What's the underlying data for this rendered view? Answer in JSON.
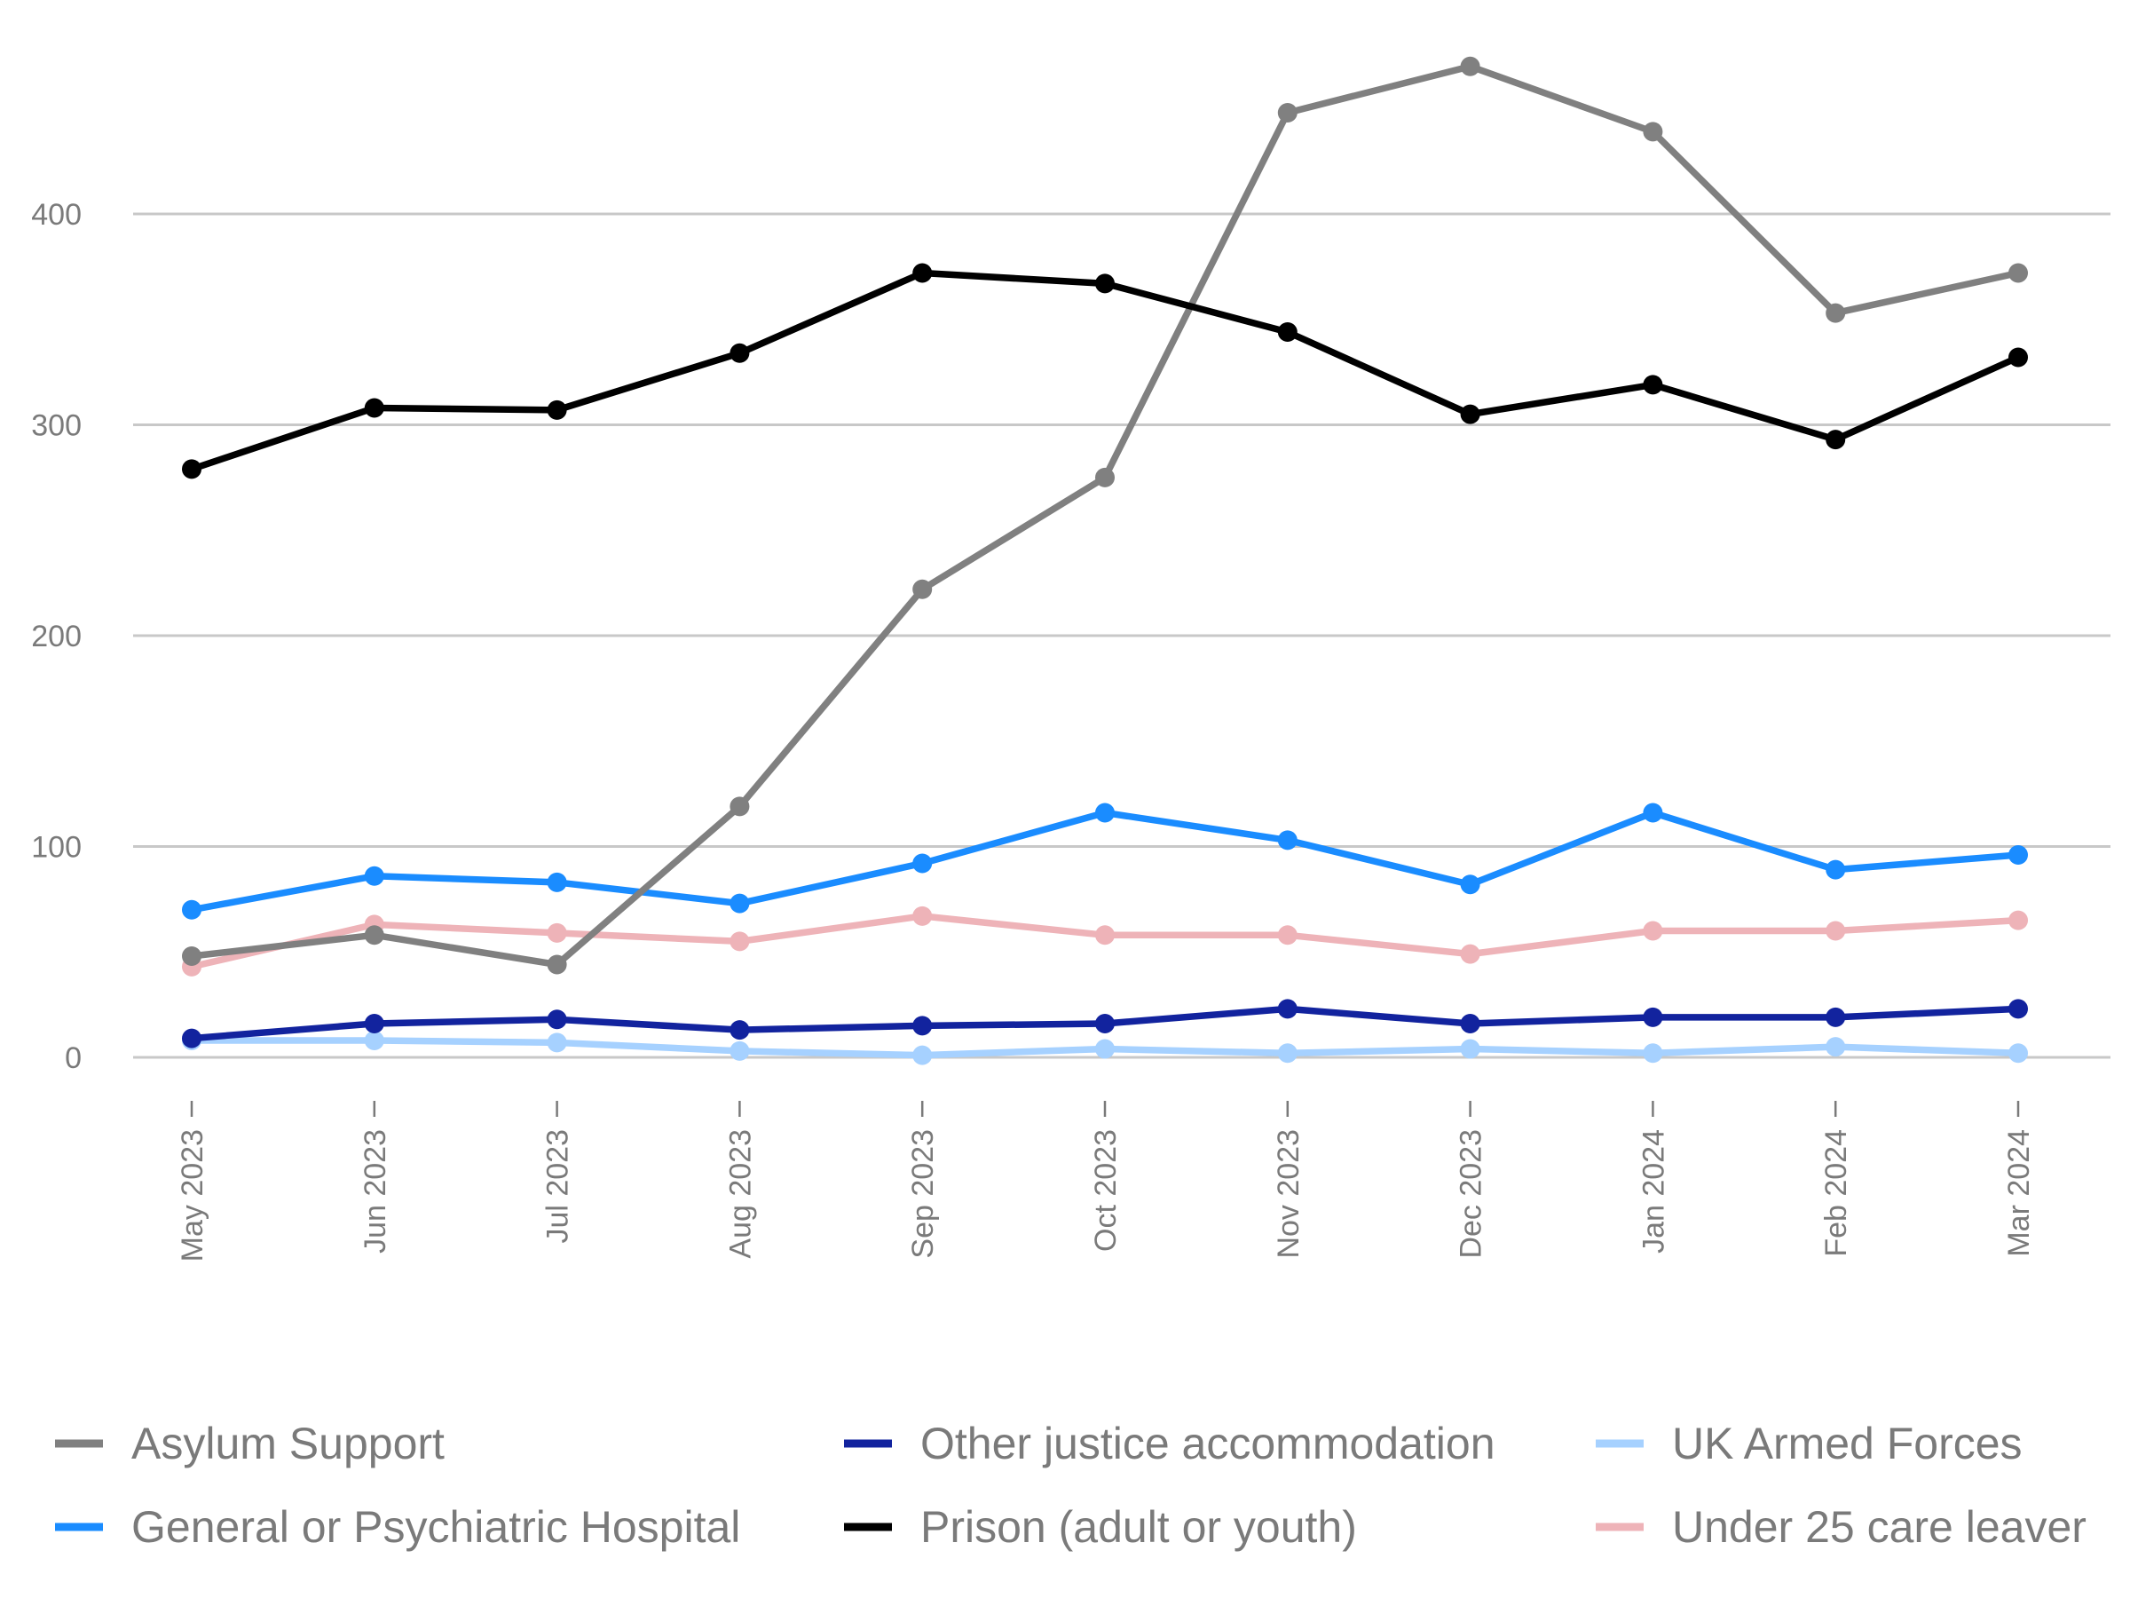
{
  "chart_data": {
    "type": "line",
    "categories": [
      "May 2023",
      "Jun 2023",
      "Jul 2023",
      "Aug 2023",
      "Sep 2023",
      "Oct 2023",
      "Nov 2023",
      "Dec 2023",
      "Jan 2024",
      "Feb 2024",
      "Mar 2024"
    ],
    "ylim": [
      -20,
      470
    ],
    "yticks": [
      0,
      100,
      200,
      300,
      400
    ],
    "grid": true,
    "legend_position": "bottom",
    "series": [
      {
        "name": "Asylum Support",
        "color": "#808080",
        "values": [
          48,
          58,
          44,
          119,
          222,
          275,
          448,
          470,
          439,
          353,
          372
        ]
      },
      {
        "name": "General or Psychiatric Hospital",
        "color": "#1a8cff",
        "values": [
          70,
          86,
          83,
          73,
          92,
          116,
          103,
          82,
          116,
          89,
          96
        ]
      },
      {
        "name": "Other justice accommodation",
        "color": "#12239e",
        "values": [
          9,
          16,
          18,
          13,
          15,
          16,
          23,
          16,
          19,
          19,
          23
        ]
      },
      {
        "name": "Prison (adult or youth)",
        "color": "#000000",
        "values": [
          279,
          308,
          307,
          334,
          372,
          367,
          344,
          305,
          319,
          293,
          332
        ]
      },
      {
        "name": "UK Armed Forces",
        "color": "#a6d1ff",
        "values": [
          8,
          8,
          7,
          3,
          1,
          4,
          2,
          4,
          2,
          5,
          2
        ]
      },
      {
        "name": "Under 25 care leaver",
        "color": "#eeb3b8",
        "values": [
          43,
          63,
          59,
          55,
          67,
          58,
          58,
          49,
          60,
          60,
          65
        ]
      }
    ]
  }
}
